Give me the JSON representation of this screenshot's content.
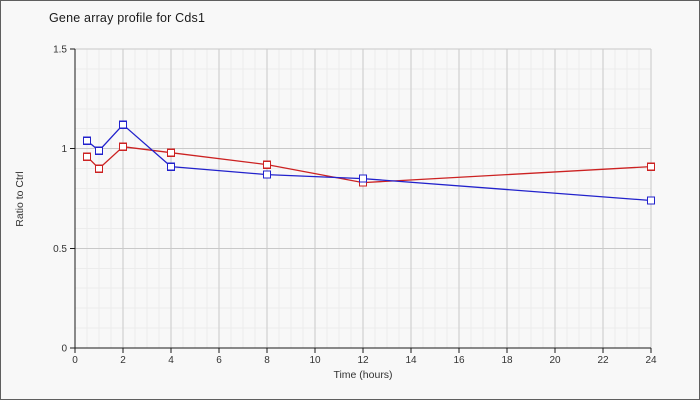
{
  "window": {
    "background_color": "#f8f8f8",
    "border_color": "#5f5f5f"
  },
  "chart_data": {
    "type": "line",
    "title": "Gene array profile for Cds1",
    "xlabel": "Time (hours)",
    "ylabel": "Ratio to Ctrl",
    "xlim": [
      0,
      24
    ],
    "ylim": [
      0,
      1.5
    ],
    "x_tick_values": [
      0,
      2,
      4,
      6,
      8,
      10,
      12,
      14,
      16,
      18,
      20,
      22,
      24
    ],
    "x_tick_labels": [
      "0",
      "2",
      "4",
      "6",
      "8",
      "10",
      "12",
      "14",
      "16",
      "18",
      "20",
      "22",
      "24"
    ],
    "y_tick_values": [
      0,
      0.5,
      1,
      1.5
    ],
    "y_tick_labels": [
      "0",
      "0.5",
      "1",
      "1.5"
    ],
    "x_minor_step": 0.5,
    "y_minor_step": 0.1,
    "grid": true,
    "legend_position": "none",
    "marker": "open-square",
    "x": [
      0.5,
      1,
      2,
      4,
      8,
      12,
      24
    ],
    "series": [
      {
        "name": "red-series",
        "color": "#cc2222",
        "values": [
          0.96,
          0.9,
          1.01,
          0.98,
          0.92,
          0.83,
          0.91
        ]
      },
      {
        "name": "blue-series",
        "color": "#2222cc",
        "values": [
          1.04,
          0.99,
          1.12,
          0.91,
          0.87,
          0.85,
          0.74
        ]
      }
    ],
    "styles": {
      "grid_major_color": "#c9c9c9",
      "grid_minor_color": "#ececec",
      "axis_color": "#1a1a1a",
      "tick_label_color": "#333333",
      "marker_fill": "#ffffff"
    }
  }
}
